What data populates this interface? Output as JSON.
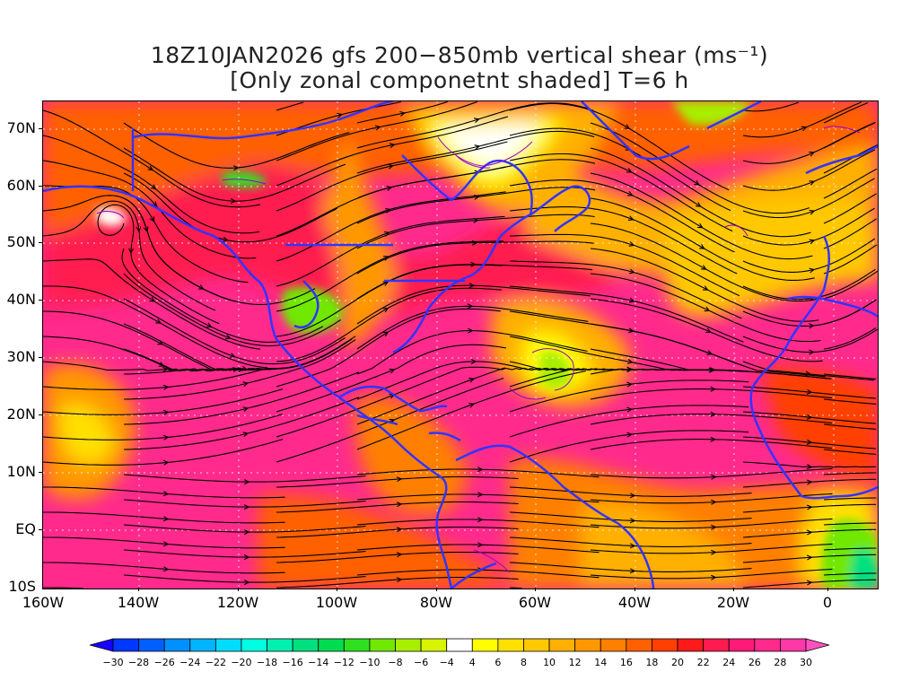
{
  "title_line1": "18Z10JAN2026 gfs 200−850mb vertical shear (ms⁻¹)",
  "title_line2": "[Only zonal componetnt shaded] T=6 h",
  "lat_labels": [
    "70N",
    "60N",
    "50N",
    "40N",
    "30N",
    "20N",
    "10N",
    "EQ",
    "10S"
  ],
  "lon_labels": [
    "160W",
    "140W",
    "120W",
    "100W",
    "80W",
    "60W",
    "40W",
    "20W",
    "0"
  ],
  "colorbar": {
    "labels": [
      "−30",
      "−28",
      "−26",
      "−24",
      "−22",
      "−20",
      "−18",
      "−16",
      "−14",
      "−12",
      "−10",
      "−8",
      "−6",
      "−4",
      "4",
      "6",
      "8",
      "10",
      "12",
      "14",
      "16",
      "18",
      "20",
      "22",
      "24",
      "26",
      "28",
      "30"
    ],
    "colors": [
      "#1a00ff",
      "#0038ff",
      "#0060ff",
      "#0090ff",
      "#00b4ff",
      "#00dcff",
      "#00ffe0",
      "#00f0b0",
      "#00e080",
      "#00dc50",
      "#30e020",
      "#70e800",
      "#a8ee00",
      "#d8f400",
      "#ffffff",
      "#ffff00",
      "#ffe000",
      "#ffc800",
      "#ffb000",
      "#ff9800",
      "#ff8000",
      "#ff6000",
      "#ff4000",
      "#ff1a1a",
      "#ff1a50",
      "#ff1a78",
      "#ff2a8c",
      "#ff38a8",
      "#ff50c0"
    ]
  },
  "colors": {
    "coastline": "#3333ff",
    "streamline": "#000000",
    "contour": "#9900cc",
    "grid": "#ffffff"
  }
}
